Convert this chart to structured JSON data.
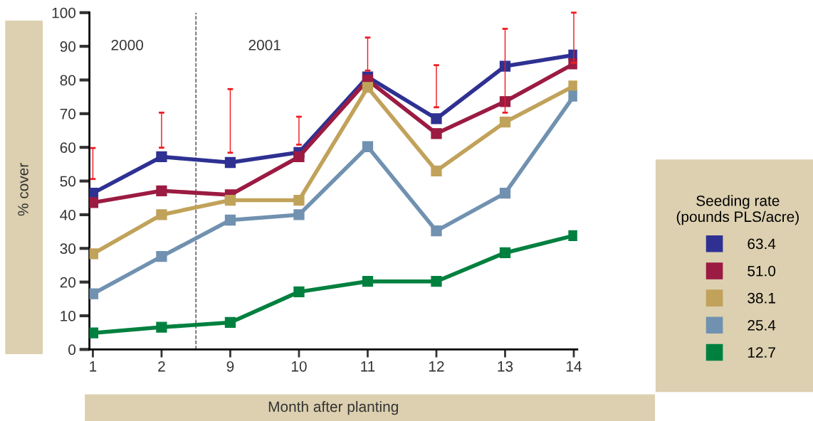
{
  "chart_data": {
    "type": "line",
    "xlabel": "Month after planting",
    "ylabel": "% cover",
    "legend_title": "Seeding rate\n(pounds PLS/acre)",
    "categories": [
      "1",
      "2",
      "9",
      "10",
      "11",
      "12",
      "13",
      "14"
    ],
    "series": [
      {
        "name": "63.4",
        "color": "#2e3192",
        "values": [
          46.4,
          57.2,
          55.5,
          58.5,
          80.9,
          68.5,
          84.1,
          87.4
        ]
      },
      {
        "name": "51.0",
        "color": "#9b1b42",
        "values": [
          43.6,
          47.1,
          45.9,
          57.2,
          80.0,
          64.1,
          73.6,
          84.8
        ]
      },
      {
        "name": "38.1",
        "color": "#c1a25a",
        "values": [
          28.4,
          40.0,
          44.3,
          44.3,
          77.8,
          53.0,
          67.5,
          78.2
        ]
      },
      {
        "name": "25.4",
        "color": "#7191b0",
        "values": [
          16.5,
          27.6,
          38.4,
          40.0,
          60.2,
          35.2,
          46.4,
          75.2
        ]
      },
      {
        "name": "12.7",
        "color": "#00803f",
        "values": [
          4.9,
          6.6,
          8.0,
          17.1,
          20.2,
          20.2,
          28.7,
          33.8
        ]
      },
      {
        "type": "bar",
        "color": "#ed1c24",
        "base": [
          50.6,
          59.9,
          58.4,
          60.8,
          82.8,
          71.9,
          70.3,
          85.1
        ],
        "values": [
          9.2,
          10.4,
          18.9,
          8.3,
          9.8,
          12.5,
          24.9,
          14.9
        ]
      }
    ],
    "ylim": [
      0,
      100
    ],
    "yticks": [
      0,
      10,
      20,
      30,
      40,
      50,
      60,
      70,
      80,
      90,
      100
    ],
    "annotations": [
      "2000",
      "2001"
    ],
    "marker": "square",
    "line_style": "solid",
    "grid": false,
    "legend": "right"
  }
}
